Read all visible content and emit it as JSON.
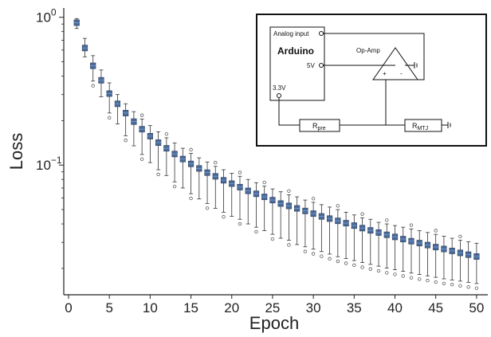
{
  "chart_data": {
    "type": "box",
    "xlabel": "Epoch",
    "ylabel": "Loss",
    "yscale": "log",
    "xlim": [
      0,
      50.5
    ],
    "ylim": [
      0.017,
      1.1
    ],
    "x_ticks": [
      0,
      5,
      10,
      15,
      20,
      25,
      30,
      35,
      40,
      45,
      50
    ],
    "y_ticks": [
      {
        "value": 1,
        "base": "10",
        "exp": "0"
      },
      {
        "value": 0.1,
        "base": "10",
        "exp": "−1"
      }
    ],
    "box_color": "#4a6a9a",
    "median_color": "#7aa0d0",
    "epochs": [
      1,
      2,
      3,
      4,
      5,
      6,
      7,
      8,
      9,
      10,
      11,
      12,
      13,
      14,
      15,
      16,
      17,
      18,
      19,
      20,
      21,
      22,
      23,
      24,
      25,
      26,
      27,
      28,
      29,
      30,
      31,
      32,
      33,
      34,
      35,
      36,
      37,
      38,
      39,
      40,
      41,
      42,
      43,
      44,
      45,
      46,
      47,
      48,
      49,
      50
    ],
    "medians": [
      0.92,
      0.62,
      0.47,
      0.375,
      0.305,
      0.26,
      0.225,
      0.197,
      0.175,
      0.157,
      0.142,
      0.13,
      0.119,
      0.11,
      0.102,
      0.095,
      0.089,
      0.084,
      0.079,
      0.075,
      0.071,
      0.067,
      0.064,
      0.061,
      0.058,
      0.055,
      0.053,
      0.051,
      0.049,
      0.047,
      0.045,
      0.0435,
      0.042,
      0.0405,
      0.039,
      0.0375,
      0.0362,
      0.035,
      0.0338,
      0.0327,
      0.0316,
      0.0306,
      0.0297,
      0.0288,
      0.0279,
      0.0271,
      0.0263,
      0.0255,
      0.0248,
      0.0241
    ],
    "whisker_low": [
      0.84,
      0.54,
      0.37,
      0.29,
      0.225,
      0.19,
      0.158,
      0.135,
      0.118,
      0.104,
      0.093,
      0.085,
      0.077,
      0.07,
      0.064,
      0.059,
      0.055,
      0.051,
      0.048,
      0.045,
      0.043,
      0.04,
      0.038,
      0.036,
      0.034,
      0.032,
      0.031,
      0.029,
      0.028,
      0.027,
      0.026,
      0.025,
      0.024,
      0.0233,
      0.0226,
      0.0219,
      0.0213,
      0.0207,
      0.0201,
      0.0196,
      0.0191,
      0.0186,
      0.0182,
      0.0178,
      0.0174,
      0.017,
      0.0167,
      0.0164,
      0.0161,
      0.0158
    ],
    "whisker_high": [
      0.98,
      0.72,
      0.55,
      0.44,
      0.36,
      0.3,
      0.26,
      0.23,
      0.205,
      0.185,
      0.168,
      0.153,
      0.141,
      0.13,
      0.12,
      0.112,
      0.105,
      0.098,
      0.093,
      0.088,
      0.084,
      0.08,
      0.076,
      0.072,
      0.069,
      0.066,
      0.063,
      0.061,
      0.058,
      0.056,
      0.054,
      0.052,
      0.05,
      0.048,
      0.046,
      0.044,
      0.043,
      0.041,
      0.04,
      0.039,
      0.038,
      0.037,
      0.036,
      0.035,
      0.034,
      0.033,
      0.032,
      0.031,
      0.0303,
      0.0296
    ]
  },
  "inset": {
    "arduino_label": "Arduino",
    "analog_input_label": "Analog input",
    "five_v_label": "5V",
    "three_v_label": "3.3V",
    "opamp_label": "Op-Amp",
    "plus_label": "+",
    "minus_label": "-",
    "r_pre_main": "R",
    "r_pre_sub": "pre",
    "r_mtj_main": "R",
    "r_mtj_sub": "MTJ"
  }
}
